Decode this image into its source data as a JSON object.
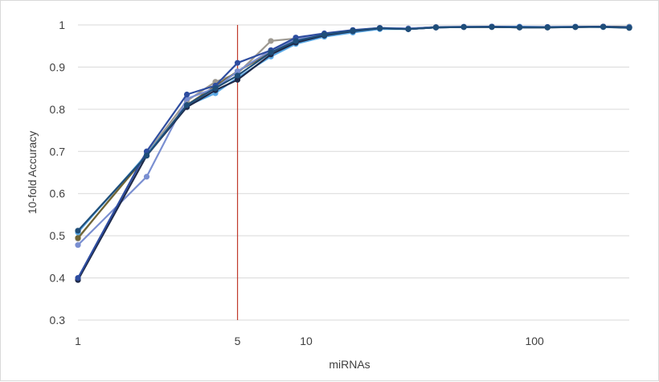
{
  "chart_data": {
    "type": "line",
    "title": "",
    "xlabel": "miRNAs",
    "ylabel": "10-fold Accuracy",
    "x_scale": "log",
    "xlim": [
      1,
      260
    ],
    "ylim": [
      0.3,
      1.0
    ],
    "y_ticks": [
      "0.3",
      "0.4",
      "0.5",
      "0.6",
      "0.7",
      "0.8",
      "0.9",
      "1"
    ],
    "x_ticks": [
      {
        "value": 1,
        "label": "1"
      },
      {
        "value": 5,
        "label": "5"
      },
      {
        "value": 10,
        "label": "10"
      },
      {
        "value": 100,
        "label": "100"
      }
    ],
    "grid": "horizontal",
    "legend": "none",
    "reference_line": {
      "x": 5,
      "color": "#c0392b"
    },
    "x": [
      1,
      2,
      3,
      4,
      5,
      7,
      9,
      12,
      16,
      21,
      28,
      37,
      49,
      65,
      86,
      114,
      151,
      200,
      260
    ],
    "series": [
      {
        "color": "#9e9a92",
        "values": [
          0.493,
          0.695,
          0.82,
          0.865,
          0.885,
          0.962,
          0.968,
          0.975,
          0.986,
          0.993,
          0.99,
          0.994,
          0.995,
          0.995,
          0.994,
          0.994,
          0.995,
          0.996,
          0.996
        ]
      },
      {
        "color": "#6f6434",
        "values": [
          0.495,
          0.69,
          0.81,
          0.855,
          0.89,
          0.935,
          0.96,
          0.975,
          0.985,
          0.992,
          0.991,
          0.995,
          0.995,
          0.996,
          0.995,
          0.995,
          0.995,
          0.996,
          0.995
        ]
      },
      {
        "color": "#5aa9e6",
        "values": [
          0.508,
          0.693,
          0.808,
          0.838,
          0.875,
          0.925,
          0.955,
          0.972,
          0.982,
          0.99,
          0.99,
          0.994,
          0.995,
          0.996,
          0.996,
          0.995,
          0.996,
          0.995,
          0.995
        ]
      },
      {
        "color": "#7a8fd1",
        "values": [
          0.478,
          0.64,
          0.825,
          0.85,
          0.89,
          0.94,
          0.965,
          0.978,
          0.987,
          0.993,
          0.992,
          0.995,
          0.996,
          0.996,
          0.995,
          0.995,
          0.996,
          0.996,
          0.994
        ]
      },
      {
        "color": "#1e2a4a",
        "values": [
          0.395,
          0.69,
          0.805,
          0.845,
          0.87,
          0.93,
          0.958,
          0.975,
          0.985,
          0.992,
          0.99,
          0.994,
          0.995,
          0.995,
          0.994,
          0.994,
          0.995,
          0.996,
          0.993
        ]
      },
      {
        "color": "#2e4da0",
        "values": [
          0.4,
          0.7,
          0.835,
          0.856,
          0.91,
          0.94,
          0.97,
          0.98,
          0.988,
          0.993,
          0.99,
          0.994,
          0.995,
          0.996,
          0.995,
          0.995,
          0.995,
          0.996,
          0.994
        ]
      },
      {
        "color": "#1f4e79",
        "values": [
          0.512,
          0.69,
          0.81,
          0.85,
          0.88,
          0.935,
          0.962,
          0.977,
          0.986,
          0.992,
          0.99,
          0.994,
          0.995,
          0.995,
          0.994,
          0.994,
          0.995,
          0.995,
          0.993
        ]
      }
    ]
  }
}
